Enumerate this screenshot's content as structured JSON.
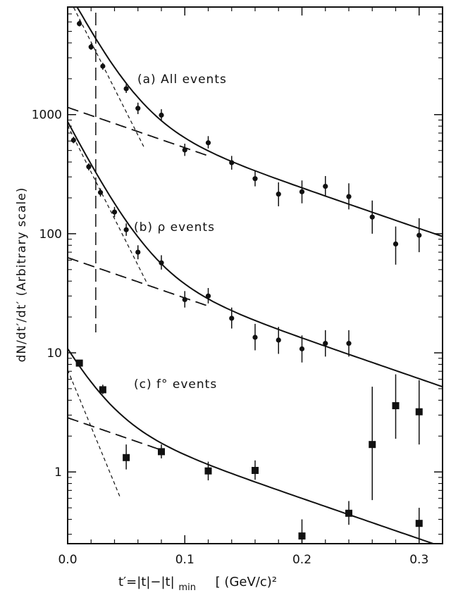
{
  "chart_data": {
    "type": "scatter",
    "y_scale": "log",
    "xlim": [
      0.0,
      0.32
    ],
    "ylim": [
      0.25,
      8000
    ],
    "grid": false,
    "x_ticks": [
      "0.0",
      "0.1",
      "0.2",
      "0.3"
    ],
    "y_ticks": [
      "1",
      "10",
      "100",
      "1000"
    ],
    "xlabel": {
      "main": "t′=|t|−|t|",
      "subscript": "min",
      "unit": "[ (GeV/c)²"
    },
    "ylabel": "dN/dt′/dt′   (Arbitrary scale)",
    "cut_line_x": 0.024,
    "series": [
      {
        "name": "(a) All events",
        "marker": "circle",
        "points": [
          {
            "x": 0.01,
            "y": 5800,
            "lo": 5500,
            "hi": 6200
          },
          {
            "x": 0.02,
            "y": 3700,
            "lo": 3500,
            "hi": 3950
          },
          {
            "x": 0.03,
            "y": 2550,
            "lo": 2380,
            "hi": 2720
          },
          {
            "x": 0.05,
            "y": 1650,
            "lo": 1520,
            "hi": 1800
          },
          {
            "x": 0.06,
            "y": 1130,
            "lo": 1010,
            "hi": 1260
          },
          {
            "x": 0.08,
            "y": 990,
            "lo": 880,
            "hi": 1110
          },
          {
            "x": 0.1,
            "y": 505,
            "lo": 450,
            "hi": 570
          },
          {
            "x": 0.12,
            "y": 580,
            "lo": 520,
            "hi": 660
          },
          {
            "x": 0.14,
            "y": 395,
            "lo": 345,
            "hi": 450
          },
          {
            "x": 0.16,
            "y": 290,
            "lo": 250,
            "hi": 340
          },
          {
            "x": 0.18,
            "y": 215,
            "lo": 170,
            "hi": 270
          },
          {
            "x": 0.2,
            "y": 225,
            "lo": 180,
            "hi": 280
          },
          {
            "x": 0.22,
            "y": 250,
            "lo": 205,
            "hi": 305
          },
          {
            "x": 0.24,
            "y": 205,
            "lo": 160,
            "hi": 265
          },
          {
            "x": 0.26,
            "y": 138,
            "lo": 100,
            "hi": 190
          },
          {
            "x": 0.28,
            "y": 82,
            "lo": 55,
            "hi": 115
          },
          {
            "x": 0.3,
            "y": 97,
            "lo": 70,
            "hi": 135
          }
        ],
        "fit_total": {
          "A": 10000,
          "a": 45,
          "B": 1150,
          "b": 7.8,
          "x0": 0.0,
          "x1": 0.32
        },
        "fit_slow": {
          "B": 1150,
          "b": 7.8,
          "x0": 0.0,
          "x1": 0.12
        },
        "fit_fast": {
          "A": 10000,
          "a": 45,
          "x0": 0.0,
          "x1": 0.065
        }
      },
      {
        "name": "(b) ρ events",
        "marker": "circle",
        "points": [
          {
            "x": 0.005,
            "y": 610,
            "lo": 575,
            "hi": 650
          },
          {
            "x": 0.018,
            "y": 365,
            "lo": 340,
            "hi": 390
          },
          {
            "x": 0.028,
            "y": 222,
            "lo": 205,
            "hi": 240
          },
          {
            "x": 0.04,
            "y": 152,
            "lo": 138,
            "hi": 168
          },
          {
            "x": 0.05,
            "y": 108,
            "lo": 96,
            "hi": 122
          },
          {
            "x": 0.06,
            "y": 70,
            "lo": 61,
            "hi": 80
          },
          {
            "x": 0.08,
            "y": 57,
            "lo": 50,
            "hi": 66
          },
          {
            "x": 0.1,
            "y": 28,
            "lo": 24,
            "hi": 33
          },
          {
            "x": 0.12,
            "y": 30,
            "lo": 26,
            "hi": 35
          },
          {
            "x": 0.14,
            "y": 19.5,
            "lo": 16,
            "hi": 24
          },
          {
            "x": 0.16,
            "y": 13.5,
            "lo": 10.5,
            "hi": 17.5
          },
          {
            "x": 0.18,
            "y": 12.8,
            "lo": 9.8,
            "hi": 16.5
          },
          {
            "x": 0.2,
            "y": 10.8,
            "lo": 8.3,
            "hi": 14
          },
          {
            "x": 0.22,
            "y": 12.0,
            "lo": 9.3,
            "hi": 15.5
          },
          {
            "x": 0.24,
            "y": 12.0,
            "lo": 9.3,
            "hi": 15.5
          }
        ],
        "fit_total": {
          "A": 810,
          "a": 45,
          "B": 63,
          "b": 7.8,
          "x0": 0.0,
          "x1": 0.32
        },
        "fit_slow": {
          "B": 63,
          "b": 7.8,
          "x0": 0.0,
          "x1": 0.12
        },
        "fit_fast": {
          "A": 810,
          "a": 45,
          "x0": 0.0,
          "x1": 0.068
        }
      },
      {
        "name": "(c) f° events",
        "marker": "square",
        "points": [
          {
            "x": 0.01,
            "y": 8.2,
            "lo": 7.8,
            "hi": 8.7
          },
          {
            "x": 0.03,
            "y": 4.9,
            "lo": 4.5,
            "hi": 5.4
          },
          {
            "x": 0.05,
            "y": 1.32,
            "lo": 1.05,
            "hi": 1.7
          },
          {
            "x": 0.08,
            "y": 1.48,
            "lo": 1.3,
            "hi": 1.7
          },
          {
            "x": 0.12,
            "y": 1.02,
            "lo": 0.85,
            "hi": 1.22
          },
          {
            "x": 0.16,
            "y": 1.03,
            "lo": 0.86,
            "hi": 1.25
          },
          {
            "x": 0.2,
            "y": 0.29,
            "lo": 0.2,
            "hi": 0.4
          },
          {
            "x": 0.24,
            "y": 0.45,
            "lo": 0.36,
            "hi": 0.57
          },
          {
            "x": 0.26,
            "y": 1.7,
            "lo": 0.58,
            "hi": 5.2
          },
          {
            "x": 0.28,
            "y": 3.6,
            "lo": 1.9,
            "hi": 6.6
          },
          {
            "x": 0.3,
            "y": 3.2,
            "lo": 1.7,
            "hi": 5.9
          },
          {
            "x": 0.3,
            "y": 0.37,
            "lo": 0.29,
            "hi": 0.5
          }
        ],
        "fit_total": {
          "A": 8.0,
          "a": 45,
          "B": 2.85,
          "b": 7.8,
          "x0": 0.0,
          "x1": 0.32
        },
        "fit_slow": {
          "B": 2.85,
          "b": 7.8,
          "x0": 0.0,
          "x1": 0.08
        },
        "fit_fast": {
          "A": 7.2,
          "a": 55,
          "x0": 0.0,
          "x1": 0.045
        }
      }
    ]
  }
}
